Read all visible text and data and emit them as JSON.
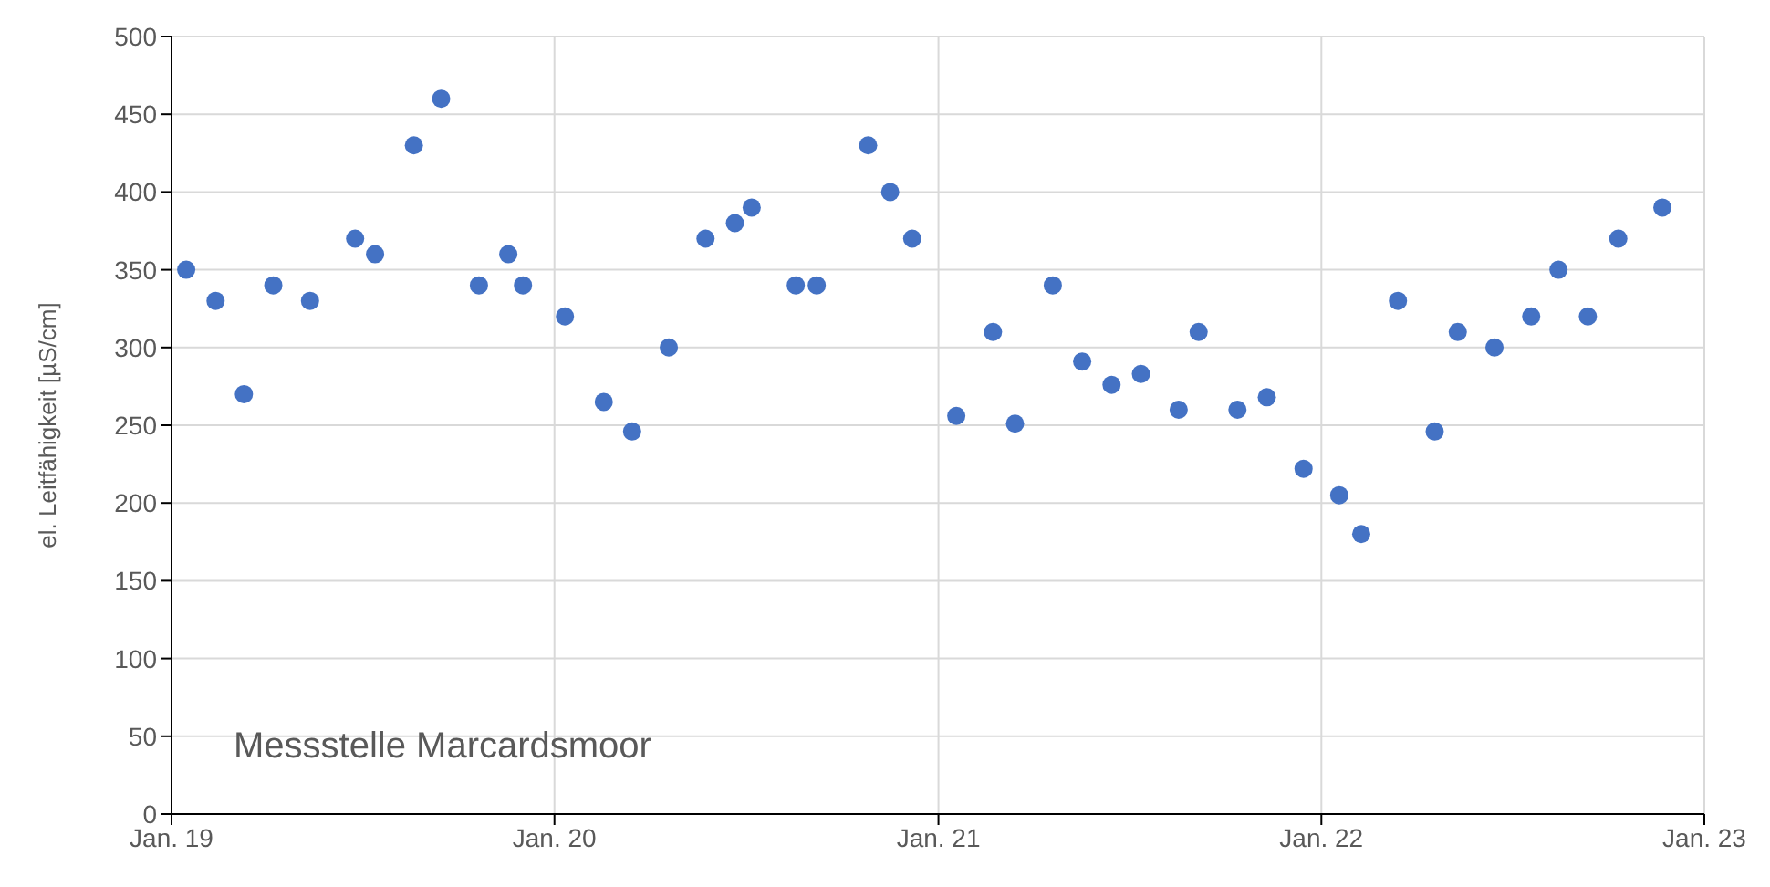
{
  "chart_data": {
    "type": "scatter",
    "ylabel": "el. Leitfähigkeit [µS/cm]",
    "annotations": [
      "Messstelle Marcardsmoor"
    ],
    "x": [
      "2019-01-15",
      "2019-02-12",
      "2019-03-11",
      "2019-04-08",
      "2019-05-13",
      "2019-06-25",
      "2019-07-14",
      "2019-08-20",
      "2019-09-15",
      "2019-10-21",
      "2019-11-18",
      "2019-12-02",
      "2020-01-11",
      "2020-02-17",
      "2020-03-15",
      "2020-04-19",
      "2020-05-24",
      "2020-06-21",
      "2020-07-07",
      "2020-08-18",
      "2020-09-07",
      "2020-10-26",
      "2020-11-16",
      "2020-12-07",
      "2021-01-18",
      "2021-02-22",
      "2021-03-15",
      "2021-04-20",
      "2021-05-18",
      "2021-06-15",
      "2021-07-13",
      "2021-08-18",
      "2021-09-06",
      "2021-10-13",
      "2021-11-10",
      "2021-12-15",
      "2022-01-18",
      "2022-02-08",
      "2022-03-15",
      "2022-04-19",
      "2022-05-11",
      "2022-06-15",
      "2022-07-20",
      "2022-08-15",
      "2022-09-12",
      "2022-10-11",
      "2022-11-22"
    ],
    "series": [
      {
        "color": "#4472c4",
        "values": [
          350,
          330,
          270,
          340,
          330,
          370,
          360,
          430,
          460,
          340,
          360,
          340,
          320,
          265,
          246,
          300,
          370,
          380,
          390,
          340,
          340,
          430,
          400,
          370,
          256,
          310,
          251,
          340,
          291,
          276,
          283,
          260,
          310,
          260,
          268,
          222,
          205,
          180,
          330,
          246,
          310,
          300,
          320,
          350,
          320,
          370,
          390
        ]
      }
    ],
    "xlim": [
      "2019-01-01",
      "2023-01-01"
    ],
    "xticks": [
      {
        "value": "2019-01-01",
        "label": "Jan. 19"
      },
      {
        "value": "2020-01-01",
        "label": "Jan. 20"
      },
      {
        "value": "2021-01-01",
        "label": "Jan. 21"
      },
      {
        "value": "2022-01-01",
        "label": "Jan. 22"
      },
      {
        "value": "2023-01-01",
        "label": "Jan. 23"
      }
    ],
    "ylim": [
      0,
      500
    ],
    "yticks": [
      0,
      50,
      100,
      150,
      200,
      250,
      300,
      350,
      400,
      450,
      500
    ],
    "grid": true,
    "legend": false,
    "marker": "circle"
  }
}
